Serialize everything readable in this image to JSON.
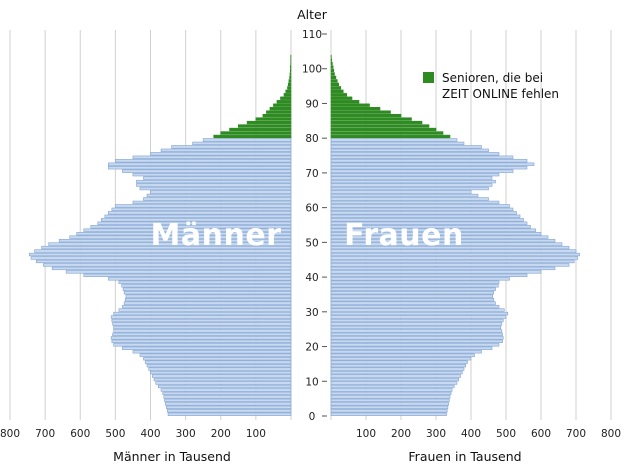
{
  "colors": {
    "bar_fill": "#c7d8ef",
    "bar_stroke": "#7fa3d3",
    "senior": "#2e8b22",
    "grid": "#d0d0d0"
  },
  "chart_data": {
    "type": "bar",
    "orientation": "horizontal",
    "title": "Alter",
    "age_axis": {
      "min": 0,
      "max": 110,
      "ticks": [
        0,
        10,
        20,
        30,
        40,
        50,
        60,
        70,
        80,
        90,
        100,
        110
      ]
    },
    "left_xlabel": "Männer in Tausend",
    "right_xlabel": "Frauen in Tausend",
    "left_xticks": [
      800,
      700,
      600,
      500,
      400,
      300,
      200,
      100
    ],
    "right_xticks": [
      100,
      200,
      300,
      400,
      500,
      600,
      700,
      800
    ],
    "xlim": [
      0,
      800
    ],
    "men_label": "Männer",
    "women_label": "Frauen",
    "legend": {
      "label_line1": "Senioren, die bei",
      "label_line2": "ZEIT ONLINE fehlen"
    },
    "senior_from_age": 80,
    "ages": [
      0,
      1,
      2,
      3,
      4,
      5,
      6,
      7,
      8,
      9,
      10,
      11,
      12,
      13,
      14,
      15,
      16,
      17,
      18,
      19,
      20,
      21,
      22,
      23,
      24,
      25,
      26,
      27,
      28,
      29,
      30,
      31,
      32,
      33,
      34,
      35,
      36,
      37,
      38,
      39,
      40,
      41,
      42,
      43,
      44,
      45,
      46,
      47,
      48,
      49,
      50,
      51,
      52,
      53,
      54,
      55,
      56,
      57,
      58,
      59,
      60,
      61,
      62,
      63,
      64,
      65,
      66,
      67,
      68,
      69,
      70,
      71,
      72,
      73,
      74,
      75,
      76,
      77,
      78,
      79,
      80,
      81,
      82,
      83,
      84,
      85,
      86,
      87,
      88,
      89,
      90,
      91,
      92,
      93,
      94,
      95,
      96,
      97,
      98,
      99,
      100,
      101,
      102,
      103
    ],
    "series": [
      {
        "name": "Männer",
        "values": [
          350,
          352,
          355,
          358,
          360,
          362,
          365,
          370,
          378,
          385,
          390,
          395,
          400,
          405,
          410,
          415,
          420,
          430,
          450,
          480,
          505,
          510,
          512,
          508,
          505,
          505,
          508,
          510,
          512,
          505,
          490,
          480,
          475,
          472,
          470,
          475,
          478,
          482,
          490,
          520,
          590,
          640,
          680,
          705,
          725,
          740,
          745,
          730,
          710,
          690,
          660,
          630,
          610,
          590,
          570,
          550,
          540,
          530,
          520,
          510,
          500,
          450,
          420,
          410,
          400,
          430,
          440,
          440,
          420,
          450,
          480,
          520,
          520,
          500,
          450,
          400,
          370,
          340,
          280,
          250,
          220,
          200,
          175,
          150,
          125,
          100,
          80,
          70,
          60,
          50,
          40,
          30,
          20,
          15,
          10,
          8,
          6,
          4,
          3,
          2,
          2,
          1,
          1,
          1
        ]
      },
      {
        "name": "Frauen",
        "values": [
          330,
          332,
          334,
          336,
          338,
          340,
          343,
          346,
          352,
          360,
          365,
          370,
          375,
          380,
          385,
          390,
          400,
          410,
          430,
          460,
          480,
          490,
          492,
          490,
          488,
          485,
          488,
          492,
          500,
          505,
          495,
          480,
          470,
          465,
          462,
          465,
          470,
          478,
          480,
          510,
          560,
          600,
          640,
          680,
          695,
          705,
          710,
          700,
          680,
          660,
          640,
          620,
          600,
          585,
          570,
          560,
          550,
          540,
          530,
          520,
          510,
          480,
          450,
          420,
          400,
          450,
          460,
          470,
          460,
          480,
          520,
          560,
          580,
          560,
          520,
          480,
          450,
          430,
          380,
          360,
          340,
          320,
          300,
          280,
          260,
          230,
          200,
          170,
          140,
          110,
          80,
          60,
          45,
          35,
          28,
          22,
          18,
          14,
          10,
          8,
          6,
          4,
          2,
          1
        ]
      }
    ]
  }
}
